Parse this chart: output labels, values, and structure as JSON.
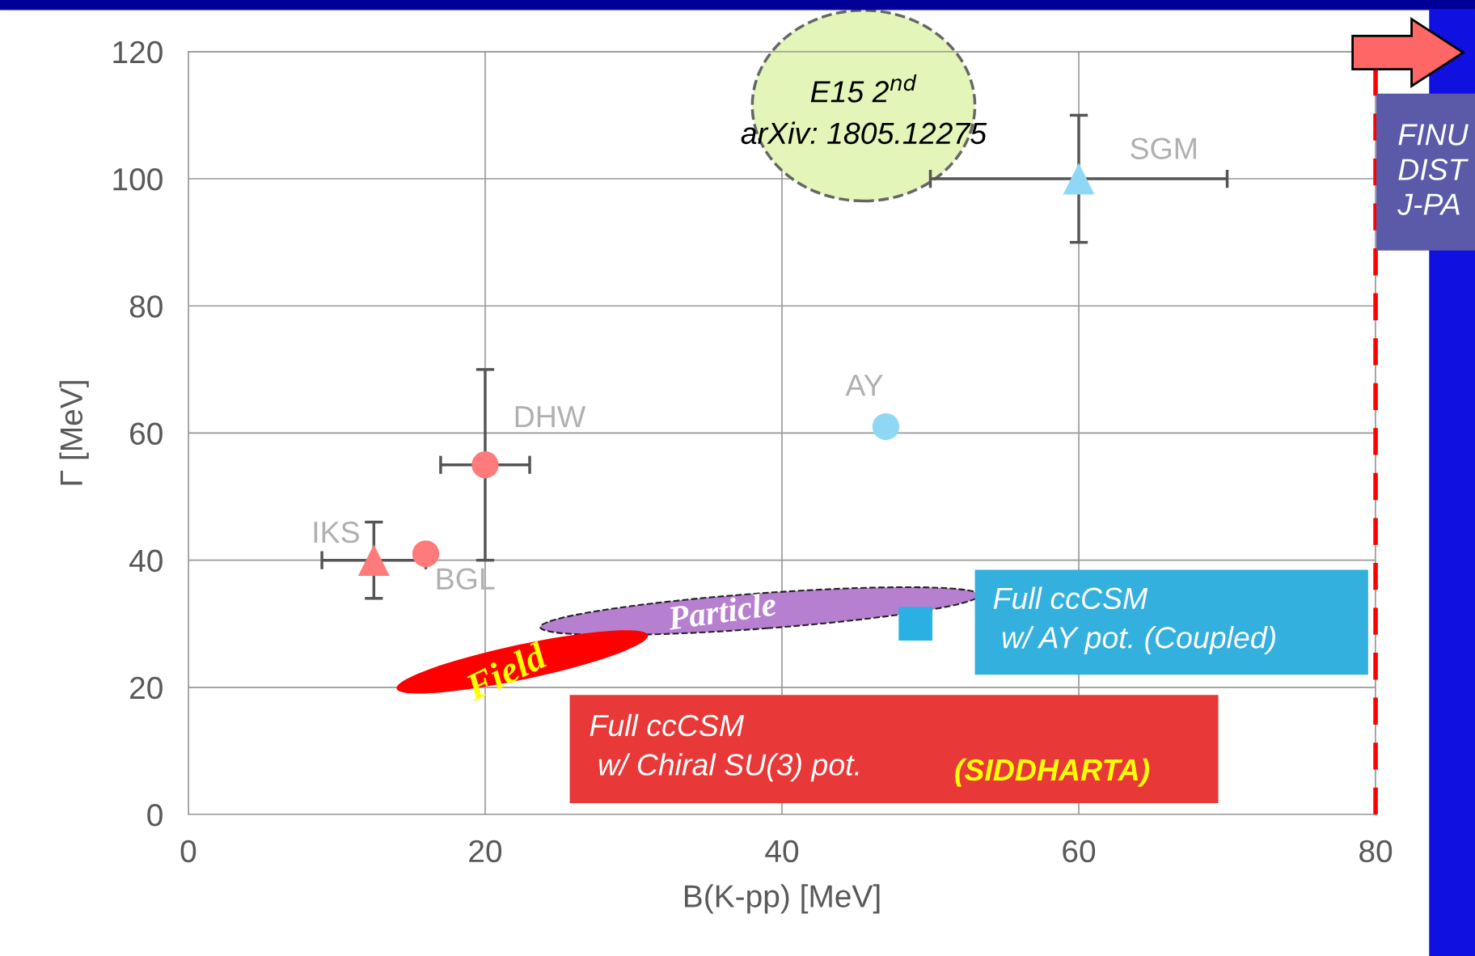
{
  "chart_data": {
    "type": "scatter",
    "xlabel": "B(K-pp) [MeV]",
    "ylabel": "Γ [MeV]",
    "xlim": [
      0,
      80
    ],
    "ylim": [
      0,
      120
    ],
    "xticks": [
      0,
      20,
      40,
      60,
      80
    ],
    "yticks": [
      0,
      20,
      40,
      60,
      80,
      100,
      120
    ],
    "grid": true,
    "series": [
      {
        "name": "IKS",
        "color": "#ff7a7a",
        "marker": "triangle",
        "x": [
          12.5
        ],
        "values": [
          40
        ],
        "errors": [
          6
        ],
        "xerrors": [
          3.5
        ]
      },
      {
        "name": "BGL",
        "color": "#ff7a7a",
        "marker": "circle",
        "x": [
          16
        ],
        "values": [
          41
        ]
      },
      {
        "name": "DHW",
        "color": "#ff7a7a",
        "marker": "circle",
        "x": [
          20
        ],
        "values": [
          55
        ],
        "errors": [
          15
        ],
        "xerrors": [
          3
        ]
      },
      {
        "name": "AY",
        "color": "#8fd8f5",
        "marker": "circle",
        "x": [
          47
        ],
        "values": [
          61
        ]
      },
      {
        "name": "SGM",
        "color": "#8fd8f5",
        "marker": "triangle",
        "x": [
          60
        ],
        "values": [
          100
        ],
        "errors": [
          10
        ],
        "xerrors": [
          10
        ]
      },
      {
        "color": "#2ab0e2",
        "marker": "square",
        "x": [
          49
        ],
        "values": [
          30
        ]
      }
    ],
    "ref_lines": [
      {
        "axis": "x",
        "value": 80,
        "color": "#ff0000",
        "line_style": "dashed"
      }
    ],
    "annotations": [
      "E15 2$^{nd}$\narXiv: 1805.12275",
      "Field",
      "Particle",
      "Full ccCSM\n w/ AY pot. (Coupled)",
      "Full ccCSM\n w/ Chiral SU(3) pot.",
      "(SIDDHARTA)",
      "FINU\nDIST\nJ-PA"
    ]
  }
}
